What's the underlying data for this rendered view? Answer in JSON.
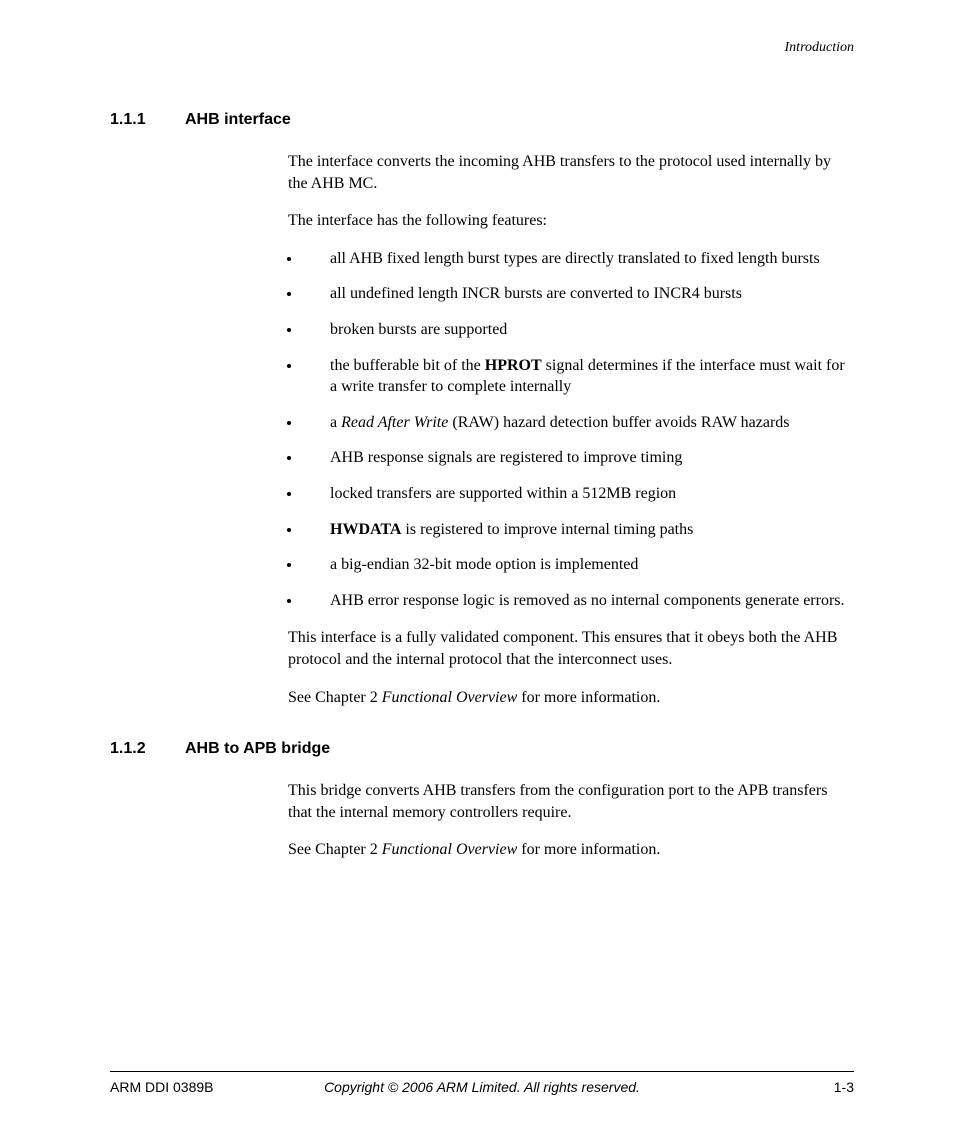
{
  "header": {
    "running": "Introduction"
  },
  "sections": [
    {
      "number": "1.1.1",
      "title": "AHB interface",
      "paras_before": [
        "The interface converts the incoming AHB transfers to the protocol used internally by the AHB MC.",
        "The interface has the following features:"
      ],
      "bullets": [
        [
          {
            "t": "all AHB fixed length burst types are directly translated to fixed length bursts"
          }
        ],
        [
          {
            "t": "all undefined length INCR bursts are converted to INCR4 bursts"
          }
        ],
        [
          {
            "t": "broken bursts are supported"
          }
        ],
        [
          {
            "t": "the bufferable bit of the "
          },
          {
            "t": "HPROT",
            "b": true
          },
          {
            "t": " signal determines if the interface must wait for a write transfer to complete internally"
          }
        ],
        [
          {
            "t": "a "
          },
          {
            "t": "Read After Write",
            "i": true
          },
          {
            "t": " (RAW) hazard detection buffer avoids RAW hazards"
          }
        ],
        [
          {
            "t": "AHB response signals are registered to improve timing"
          }
        ],
        [
          {
            "t": "locked transfers are supported within a 512MB region"
          }
        ],
        [
          {
            "t": "HWDATA",
            "b": true
          },
          {
            "t": " is registered to improve internal timing paths"
          }
        ],
        [
          {
            "t": "a big-endian 32-bit mode option is implemented"
          }
        ],
        [
          {
            "t": "AHB error response logic is removed as no internal components generate errors."
          }
        ]
      ],
      "paras_after": [
        [
          {
            "t": "This interface is a fully validated component. This ensures that it obeys both the AHB protocol and the internal protocol that the interconnect uses."
          }
        ],
        [
          {
            "t": "See Chapter 2 "
          },
          {
            "t": "Functional Overview",
            "i": true
          },
          {
            "t": " for more information."
          }
        ]
      ]
    },
    {
      "number": "1.1.2",
      "title": "AHB to APB bridge",
      "paras_before": [
        "This bridge converts AHB transfers from the configuration port to the APB transfers that the internal memory controllers require."
      ],
      "bullets": [],
      "paras_after": [
        [
          {
            "t": "See Chapter 2 "
          },
          {
            "t": "Functional Overview",
            "i": true
          },
          {
            "t": " for more information."
          }
        ]
      ]
    }
  ],
  "footer": {
    "left": "ARM DDI 0389B",
    "center": "Copyright © 2006 ARM Limited. All rights reserved.",
    "right": "1-3"
  }
}
